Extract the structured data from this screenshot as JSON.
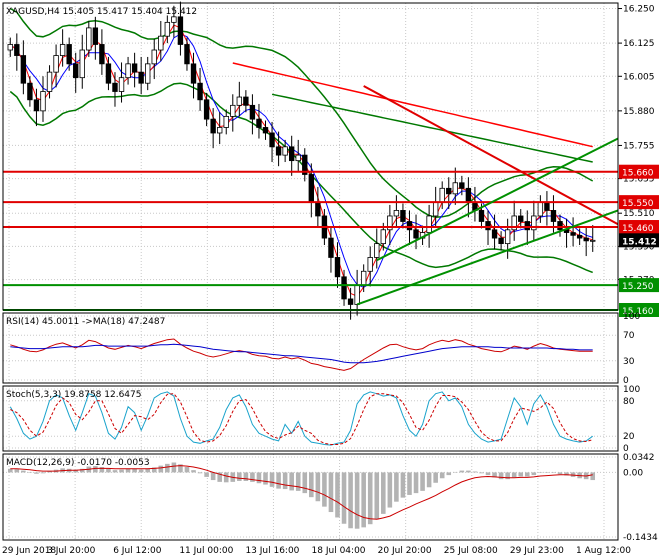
{
  "colors": {
    "bg": "#ffffff",
    "grid": "#c8c8c8",
    "frame": "#000000",
    "bull": "#000000",
    "bear": "#000000",
    "bollinger": "#007800",
    "ma_fast": "#0000ff",
    "ma_slow": "#ff0000",
    "trendline_red": "#e00000",
    "trendline_green": "#009000",
    "level_red": "#e00000",
    "level_green": "#009000",
    "rsi_line": "#cc0000",
    "rsi_ma": "#0000cc",
    "stoch_main": "#1aa3cc",
    "stoch_signal": "#cc0000",
    "macd_hist": "#b3b3b3",
    "macd_signal": "#cc0000",
    "price_box": "#000000",
    "price_text": "#ffffff"
  },
  "chart_data": [
    {
      "type": "candlestick",
      "title": "XAGUSD,H4  15.405 15.417 15.404 15.412",
      "ylim": [
        15.16,
        16.27
      ],
      "y_ticks": [
        "16.250",
        "16.125",
        "16.005",
        "15.880",
        "15.755",
        "15.635",
        "15.510",
        "15.390",
        "15.270"
      ],
      "x_labels": [
        "29 Jun 2018",
        "3 Jul 20:00",
        "6 Jul 12:00",
        "11 Jul 00:00",
        "13 Jul 16:00",
        "18 Jul 04:00",
        "20 Jul 20:00",
        "25 Jul 08:00",
        "29 Jul 23:00",
        "1 Aug 12:00"
      ],
      "close_values": [
        16.12,
        16.08,
        15.98,
        15.92,
        15.88,
        15.95,
        16.02,
        16.08,
        16.12,
        16.05,
        16.0,
        16.1,
        16.18,
        16.12,
        16.05,
        15.98,
        15.95,
        16.0,
        16.05,
        16.02,
        15.98,
        16.05,
        16.1,
        16.15,
        16.2,
        16.22,
        16.12,
        16.05,
        15.98,
        15.92,
        15.85,
        15.8,
        15.82,
        15.86,
        15.9,
        15.93,
        15.9,
        15.85,
        15.82,
        15.8,
        15.75,
        15.72,
        15.75,
        15.7,
        15.72,
        15.65,
        15.55,
        15.5,
        15.42,
        15.35,
        15.28,
        15.2,
        15.18,
        15.25,
        15.3,
        15.35,
        15.4,
        15.45,
        15.5,
        15.52,
        15.48,
        15.45,
        15.42,
        15.44,
        15.5,
        15.55,
        15.6,
        15.58,
        15.62,
        15.6,
        15.55,
        15.52,
        15.48,
        15.45,
        15.42,
        15.4,
        15.45,
        15.5,
        15.48,
        15.45,
        15.5,
        15.55,
        15.52,
        15.48,
        15.45,
        15.44,
        15.43,
        15.42,
        15.41,
        15.412
      ],
      "open_value_first": 16.1,
      "last_price": "15.412",
      "levels_red": [
        "15.660",
        "15.550",
        "15.460"
      ],
      "levels_green": [
        "15.250",
        "15.160"
      ]
    },
    {
      "type": "line",
      "title": "RSI(14) 45.0011 ->MA(18) 47.2487",
      "ylim": [
        0,
        100
      ],
      "y_ticks": [
        "100",
        "70",
        "30",
        "0"
      ],
      "series": [
        {
          "name": "RSI(14)",
          "values": [
            55,
            52,
            48,
            45,
            44,
            47,
            52,
            56,
            58,
            54,
            50,
            55,
            62,
            60,
            55,
            50,
            48,
            51,
            54,
            52,
            49,
            53,
            57,
            60,
            63,
            64,
            56,
            50,
            45,
            42,
            38,
            36,
            38,
            41,
            44,
            46,
            44,
            40,
            38,
            37,
            34,
            33,
            36,
            33,
            35,
            31,
            26,
            24,
            21,
            19,
            17,
            15,
            18,
            25,
            32,
            38,
            44,
            50,
            55,
            56,
            52,
            49,
            47,
            49,
            55,
            59,
            62,
            60,
            63,
            61,
            56,
            53,
            49,
            47,
            45,
            44,
            48,
            53,
            51,
            48,
            53,
            57,
            54,
            50,
            48,
            47,
            46,
            45,
            45,
            45
          ]
        },
        {
          "name": "MA(18)",
          "values": [
            52,
            51,
            50,
            49,
            49,
            49,
            50,
            51,
            52,
            52,
            52,
            52,
            53,
            54,
            54,
            53,
            53,
            53,
            53,
            53,
            53,
            53,
            54,
            55,
            55,
            56,
            55,
            54,
            53,
            52,
            50,
            48,
            47,
            46,
            45,
            44,
            44,
            43,
            42,
            41,
            40,
            39,
            38,
            38,
            37,
            36,
            35,
            34,
            33,
            32,
            30,
            28,
            27,
            27,
            27,
            28,
            29,
            31,
            33,
            35,
            37,
            39,
            41,
            43,
            45,
            47,
            49,
            50,
            51,
            52,
            52,
            52,
            52,
            52,
            51,
            51,
            50,
            50,
            50,
            50,
            50,
            50,
            50,
            49,
            49,
            48,
            48,
            47,
            47,
            47
          ]
        }
      ]
    },
    {
      "type": "line",
      "title": "Stoch(5,3,3) 19.8758 12.6475",
      "ylim": [
        0,
        100
      ],
      "y_ticks": [
        "100",
        "80",
        "20",
        "0"
      ],
      "series": [
        {
          "name": "%K",
          "values": [
            70,
            50,
            25,
            15,
            20,
            45,
            80,
            90,
            85,
            55,
            30,
            60,
            92,
            88,
            60,
            25,
            15,
            35,
            70,
            60,
            30,
            55,
            85,
            92,
            95,
            88,
            50,
            20,
            10,
            8,
            12,
            15,
            35,
            65,
            85,
            90,
            70,
            40,
            25,
            20,
            15,
            12,
            40,
            25,
            45,
            20,
            10,
            8,
            6,
            5,
            8,
            10,
            30,
            75,
            90,
            95,
            92,
            88,
            90,
            85,
            55,
            30,
            20,
            40,
            80,
            92,
            95,
            80,
            85,
            70,
            40,
            25,
            15,
            10,
            12,
            15,
            50,
            85,
            70,
            40,
            75,
            90,
            70,
            40,
            20,
            15,
            12,
            10,
            12,
            20
          ]
        },
        {
          "name": "%D",
          "values": [
            65,
            60,
            48,
            30,
            20,
            27,
            48,
            72,
            85,
            77,
            57,
            48,
            61,
            80,
            80,
            58,
            33,
            25,
            40,
            55,
            53,
            48,
            57,
            77,
            91,
            92,
            78,
            53,
            27,
            13,
            10,
            12,
            21,
            38,
            62,
            80,
            82,
            67,
            45,
            28,
            20,
            16,
            22,
            26,
            37,
            30,
            25,
            13,
            8,
            6,
            6,
            8,
            16,
            38,
            65,
            87,
            92,
            92,
            90,
            88,
            77,
            57,
            35,
            30,
            47,
            71,
            89,
            89,
            87,
            78,
            65,
            45,
            27,
            17,
            12,
            12,
            26,
            50,
            68,
            65,
            62,
            68,
            78,
            67,
            43,
            25,
            16,
            12,
            11,
            14
          ]
        }
      ]
    },
    {
      "type": "bar",
      "title": "MACD(12,26,9) -0.0170 -0.0053",
      "ylim": [
        -0.1434,
        0.0342
      ],
      "y_ticks": [
        "0.0342",
        "0.00",
        "-0.1434"
      ],
      "series": [
        {
          "name": "MACD",
          "values": [
            0.008,
            0.007,
            0.004,
            0.0,
            -0.003,
            -0.002,
            0.002,
            0.006,
            0.009,
            0.008,
            0.006,
            0.008,
            0.013,
            0.014,
            0.012,
            0.008,
            0.005,
            0.006,
            0.008,
            0.008,
            0.006,
            0.008,
            0.011,
            0.015,
            0.019,
            0.022,
            0.018,
            0.012,
            0.005,
            -0.002,
            -0.01,
            -0.017,
            -0.021,
            -0.022,
            -0.021,
            -0.019,
            -0.019,
            -0.021,
            -0.024,
            -0.027,
            -0.032,
            -0.036,
            -0.037,
            -0.04,
            -0.041,
            -0.046,
            -0.055,
            -0.064,
            -0.076,
            -0.088,
            -0.1,
            -0.114,
            -0.124,
            -0.125,
            -0.122,
            -0.115,
            -0.104,
            -0.092,
            -0.078,
            -0.065,
            -0.056,
            -0.05,
            -0.046,
            -0.041,
            -0.033,
            -0.023,
            -0.013,
            -0.006,
            0.001,
            0.004,
            0.004,
            0.002,
            -0.002,
            -0.006,
            -0.011,
            -0.015,
            -0.015,
            -0.011,
            -0.009,
            -0.009,
            -0.006,
            -0.001,
            0.0,
            -0.001,
            -0.004,
            -0.007,
            -0.01,
            -0.013,
            -0.015,
            -0.017
          ]
        },
        {
          "name": "Signal",
          "values": [
            0.008,
            0.008,
            0.007,
            0.006,
            0.004,
            0.003,
            0.003,
            0.003,
            0.004,
            0.005,
            0.005,
            0.006,
            0.007,
            0.009,
            0.009,
            0.009,
            0.008,
            0.008,
            0.008,
            0.008,
            0.008,
            0.008,
            0.009,
            0.01,
            0.012,
            0.014,
            0.015,
            0.014,
            0.012,
            0.009,
            0.005,
            0.0,
            -0.004,
            -0.008,
            -0.011,
            -0.013,
            -0.014,
            -0.016,
            -0.018,
            -0.02,
            -0.022,
            -0.025,
            -0.028,
            -0.03,
            -0.032,
            -0.035,
            -0.039,
            -0.044,
            -0.05,
            -0.058,
            -0.066,
            -0.076,
            -0.086,
            -0.094,
            -0.1,
            -0.103,
            -0.104,
            -0.101,
            -0.097,
            -0.09,
            -0.083,
            -0.077,
            -0.07,
            -0.064,
            -0.058,
            -0.051,
            -0.043,
            -0.036,
            -0.028,
            -0.021,
            -0.016,
            -0.012,
            -0.01,
            -0.009,
            -0.01,
            -0.011,
            -0.012,
            -0.012,
            -0.011,
            -0.011,
            -0.01,
            -0.008,
            -0.007,
            -0.006,
            -0.005,
            -0.005,
            -0.006,
            -0.007,
            -0.008,
            -0.0053
          ]
        }
      ]
    }
  ]
}
